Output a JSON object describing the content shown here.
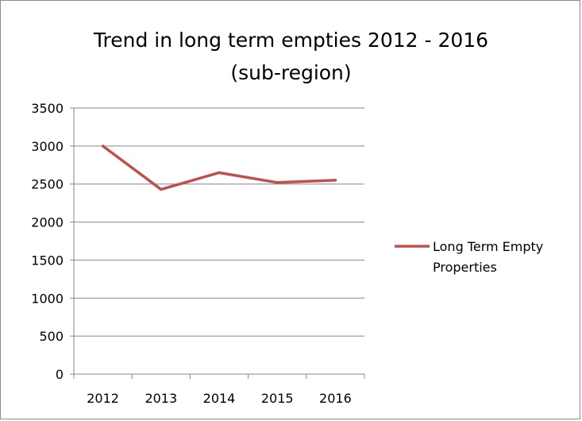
{
  "chart_data": {
    "type": "line",
    "title": "Trend in long term empties 2012 - 2016 (sub-region)",
    "title_lines": [
      "Trend in long term empties 2012 - 2016",
      "(sub-region)"
    ],
    "xlabel": "",
    "ylabel": "",
    "categories": [
      "2012",
      "2013",
      "2014",
      "2015",
      "2016"
    ],
    "series": [
      {
        "name": "Long Term Empty Properties",
        "name_lines": [
          "Long Term Empty",
          "Properties"
        ],
        "values": [
          3000,
          2430,
          2650,
          2520,
          2550
        ],
        "color": "#c0504d"
      }
    ],
    "ylim": [
      0,
      3500
    ],
    "yticks": [
      0,
      500,
      1000,
      1500,
      2000,
      2500,
      3000,
      3500
    ],
    "ytick_labels": [
      "0",
      "500",
      "1000",
      "1500",
      "2000",
      "2500",
      "3000",
      "3500"
    ],
    "grid": true,
    "legend_position": "right",
    "gridline_color": "#878787"
  }
}
